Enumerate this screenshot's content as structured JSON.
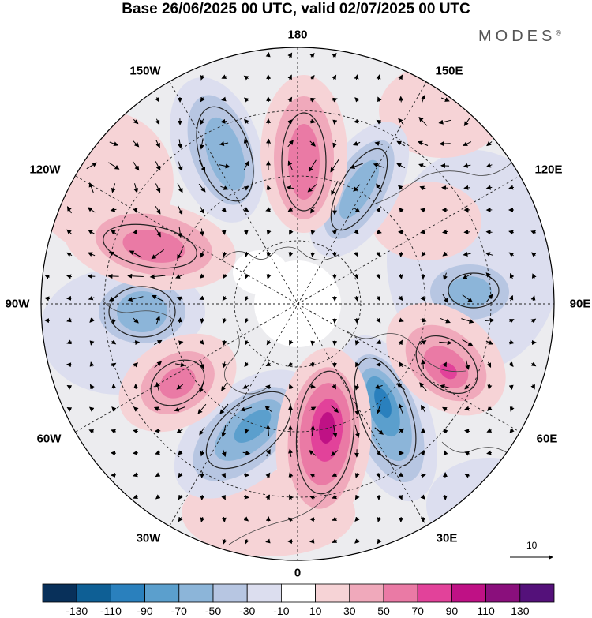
{
  "title": "Base 26/06/2025 00 UTC, valid 02/07/2025 00 UTC",
  "brand": "MODES",
  "brand_mark": "®",
  "longitude_labels": {
    "top": "180",
    "bottom": "0",
    "left": "90W",
    "right": "90E",
    "upper_left_outer": "150W",
    "upper_left": "120W",
    "upper_right_outer": "150E",
    "upper_right": "120E",
    "lower_left": "60W",
    "lower_left_inner": "30W",
    "lower_right": "60E",
    "lower_right_inner": "30E"
  },
  "reference_vector": {
    "value": "10"
  },
  "colorbar": {
    "ticks": [
      "-130",
      "-110",
      "-90",
      "-70",
      "-50",
      "-30",
      "-10",
      "10",
      "30",
      "50",
      "70",
      "90",
      "110",
      "130"
    ],
    "colors": [
      "#08305a",
      "#0e5f95",
      "#2a80bd",
      "#5b9fcd",
      "#8cb5d9",
      "#b7c6e2",
      "#dcdeef",
      "#ffffff",
      "#f6d3d6",
      "#f0a9bb",
      "#ea7aa5",
      "#e2429a",
      "#bf1185",
      "#8a0f7c",
      "#54117a"
    ]
  },
  "colors": {
    "neg_strong": "#2a80bd",
    "neg_mid": "#8cb5d9",
    "neg_weak": "#dcdeef",
    "pos_weak": "#f6d3d6",
    "pos_mid": "#f0a9bb",
    "pos_strong": "#e2429a",
    "pos_max": "#bf1185"
  }
}
